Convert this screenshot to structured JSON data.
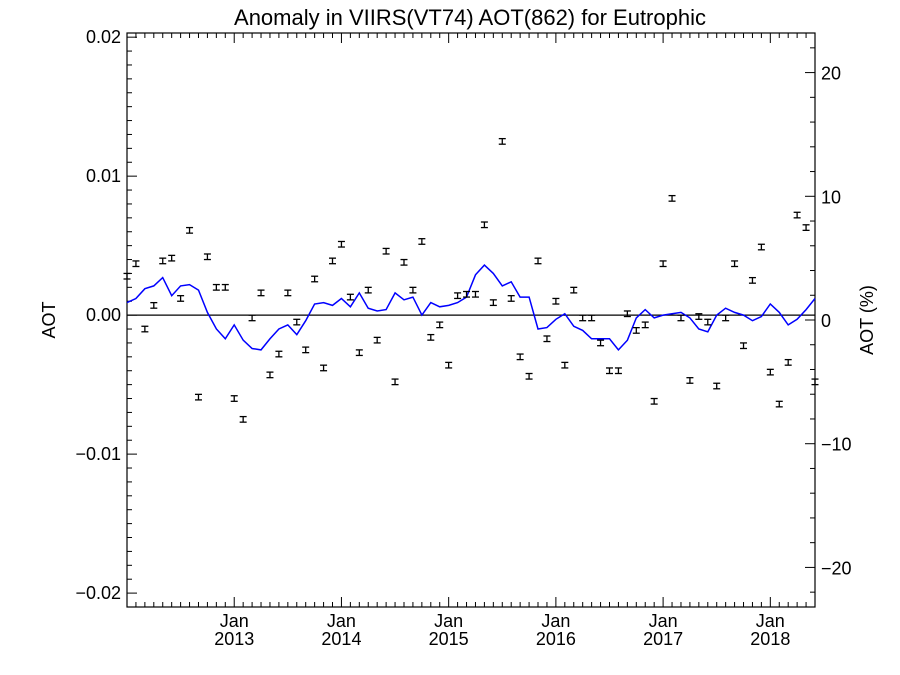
{
  "chart_data": {
    "type": "line",
    "title": "Anomaly in VIIRS(VT74) AOT(862) for Eutrophic",
    "ylabel_left": "AOT",
    "ylabel_right": "AOT (%)",
    "xlabel": "",
    "ylim_left": [
      -0.021,
      0.0203
    ],
    "ylim_right": [
      -23.2,
      23.2
    ],
    "yticks_left": [
      -0.02,
      -0.01,
      0.0,
      0.01,
      0.02
    ],
    "yticks_left_labels": [
      "−0.02",
      "−0.01",
      "0.00",
      "0.01",
      "0.02"
    ],
    "yticks_right": [
      -20,
      -10,
      0,
      10,
      20
    ],
    "yticks_right_labels": [
      "−20",
      "−10",
      "0",
      "10",
      "20"
    ],
    "xlim": [
      "2012-01",
      "2018-06"
    ],
    "xticks": [
      {
        "date": "2013-01",
        "month": "Jan",
        "year": "2013"
      },
      {
        "date": "2014-01",
        "month": "Jan",
        "year": "2014"
      },
      {
        "date": "2015-01",
        "month": "Jan",
        "year": "2015"
      },
      {
        "date": "2016-01",
        "month": "Jan",
        "year": "2016"
      },
      {
        "date": "2017-01",
        "month": "Jan",
        "year": "2017"
      },
      {
        "date": "2018-01",
        "month": "Jan",
        "year": "2018"
      }
    ],
    "zero_line": true,
    "colors": {
      "points": "#000000",
      "line": "#0000ff",
      "zero_line": "#000000"
    },
    "series": [
      {
        "style": "points-with-errorbars",
        "x": [
          "2012-01",
          "2012-02",
          "2012-03",
          "2012-04",
          "2012-05",
          "2012-06",
          "2012-07",
          "2012-08",
          "2012-09",
          "2012-10",
          "2012-11",
          "2012-12",
          "2013-01",
          "2013-02",
          "2013-03",
          "2013-04",
          "2013-05",
          "2013-06",
          "2013-07",
          "2013-08",
          "2013-09",
          "2013-10",
          "2013-11",
          "2013-12",
          "2014-01",
          "2014-02",
          "2014-03",
          "2014-04",
          "2014-05",
          "2014-06",
          "2014-07",
          "2014-08",
          "2014-09",
          "2014-10",
          "2014-11",
          "2014-12",
          "2015-01",
          "2015-02",
          "2015-03",
          "2015-04",
          "2015-05",
          "2015-06",
          "2015-07",
          "2015-08",
          "2015-09",
          "2015-10",
          "2015-11",
          "2015-12",
          "2016-01",
          "2016-02",
          "2016-03",
          "2016-04",
          "2016-05",
          "2016-06",
          "2016-07",
          "2016-08",
          "2016-09",
          "2016-10",
          "2016-11",
          "2016-12",
          "2017-01",
          "2017-02",
          "2017-03",
          "2017-04",
          "2017-05",
          "2017-06",
          "2017-07",
          "2017-08",
          "2017-09",
          "2017-10",
          "2017-11",
          "2017-12",
          "2018-01",
          "2018-02",
          "2018-03",
          "2018-04",
          "2018-05",
          "2018-06"
        ],
        "values": [
          0.0028,
          0.0037,
          -0.001,
          0.0007,
          0.0039,
          0.0041,
          0.0012,
          0.0061,
          -0.0059,
          0.0042,
          0.002,
          0.002,
          -0.006,
          -0.0075,
          -0.0002,
          0.0016,
          -0.0043,
          -0.0028,
          0.0016,
          -0.0005,
          -0.0025,
          0.0026,
          -0.0038,
          0.0039,
          0.0051,
          0.0013,
          -0.0027,
          0.0018,
          -0.0018,
          0.0046,
          -0.0048,
          0.0038,
          0.0018,
          0.0053,
          -0.0016,
          -0.0007,
          -0.0036,
          0.0014,
          0.0015,
          0.0015,
          0.0065,
          0.0009,
          0.0125,
          0.0012,
          -0.003,
          -0.0044,
          0.0039,
          -0.0017,
          0.001,
          -0.0036,
          0.0018,
          -0.0002,
          -0.0002,
          -0.002,
          -0.004,
          -0.004,
          0.0001,
          -0.0011,
          -0.0007,
          -0.0062,
          0.0037,
          0.0084,
          -0.0002,
          -0.0047,
          -0.0001,
          -0.0005,
          -0.0051,
          -0.0002,
          0.0037,
          -0.0022,
          0.0025,
          0.0049,
          -0.0041,
          -0.0064,
          -0.0034,
          0.0072,
          0.0063,
          -0.0048
        ],
        "errors": [
          0.0002,
          0.0002,
          0.0002,
          0.0002,
          0.0002,
          0.0002,
          0.0002,
          0.0002,
          0.0002,
          0.0002,
          0.0002,
          0.0002,
          0.0002,
          0.0002,
          0.0002,
          0.0002,
          0.0002,
          0.0002,
          0.0002,
          0.0002,
          0.0002,
          0.0002,
          0.0002,
          0.0002,
          0.0002,
          0.0002,
          0.0002,
          0.0002,
          0.0002,
          0.0002,
          0.0002,
          0.0002,
          0.0002,
          0.0002,
          0.0002,
          0.0002,
          0.0002,
          0.0002,
          0.0002,
          0.0002,
          0.0002,
          0.0002,
          0.0002,
          0.0002,
          0.0002,
          0.0002,
          0.0002,
          0.0002,
          0.0002,
          0.0002,
          0.0002,
          0.0002,
          0.0002,
          0.0002,
          0.0002,
          0.0002,
          0.0002,
          0.0002,
          0.0002,
          0.0002,
          0.0002,
          0.0002,
          0.0002,
          0.0002,
          0.0002,
          0.0002,
          0.0002,
          0.0002,
          0.0002,
          0.0002,
          0.0002,
          0.0002,
          0.0002,
          0.0002,
          0.0002,
          0.0002,
          0.0002,
          0.0002
        ]
      },
      {
        "style": "line",
        "x": [
          "2012-01",
          "2012-02",
          "2012-03",
          "2012-04",
          "2012-05",
          "2012-06",
          "2012-07",
          "2012-08",
          "2012-09",
          "2012-10",
          "2012-11",
          "2012-12",
          "2013-01",
          "2013-02",
          "2013-03",
          "2013-04",
          "2013-05",
          "2013-06",
          "2013-07",
          "2013-08",
          "2013-09",
          "2013-10",
          "2013-11",
          "2013-12",
          "2014-01",
          "2014-02",
          "2014-03",
          "2014-04",
          "2014-05",
          "2014-06",
          "2014-07",
          "2014-08",
          "2014-09",
          "2014-10",
          "2014-11",
          "2014-12",
          "2015-01",
          "2015-02",
          "2015-03",
          "2015-04",
          "2015-05",
          "2015-06",
          "2015-07",
          "2015-08",
          "2015-09",
          "2015-10",
          "2015-11",
          "2015-12",
          "2016-01",
          "2016-02",
          "2016-03",
          "2016-04",
          "2016-05",
          "2016-06",
          "2016-07",
          "2016-08",
          "2016-09",
          "2016-10",
          "2016-11",
          "2016-12",
          "2017-01",
          "2017-02",
          "2017-03",
          "2017-04",
          "2017-05",
          "2017-06",
          "2017-07",
          "2017-08",
          "2017-09",
          "2017-10",
          "2017-11",
          "2017-12",
          "2018-01",
          "2018-02",
          "2018-03",
          "2018-04",
          "2018-05",
          "2018-06"
        ],
        "values": [
          0.0009,
          0.0012,
          0.0019,
          0.0021,
          0.0027,
          0.0014,
          0.0021,
          0.0022,
          0.0018,
          0.0002,
          -0.001,
          -0.0017,
          -0.0007,
          -0.0018,
          -0.0024,
          -0.0025,
          -0.0017,
          -0.001,
          -0.0007,
          -0.0014,
          -0.0004,
          0.0008,
          0.0009,
          0.0007,
          0.0012,
          0.0006,
          0.0016,
          0.0005,
          0.0003,
          0.0004,
          0.0016,
          0.0011,
          0.0013,
          0.0,
          0.0009,
          0.0006,
          0.0007,
          0.0009,
          0.0013,
          0.0029,
          0.0036,
          0.003,
          0.0021,
          0.0024,
          0.0013,
          0.0013,
          -0.001,
          -0.0009,
          -0.0003,
          0.0001,
          -0.0008,
          -0.0011,
          -0.0017,
          -0.0017,
          -0.0017,
          -0.0025,
          -0.0018,
          -0.0002,
          0.0004,
          -0.0002,
          0.0,
          0.0001,
          0.0002,
          -0.0002,
          -0.001,
          -0.0012,
          0.0,
          0.0005,
          0.0002,
          0.0,
          -0.0004,
          -0.0001,
          0.0008,
          0.0002,
          -0.0007,
          -0.0003,
          0.0004,
          0.0012
        ]
      }
    ]
  }
}
